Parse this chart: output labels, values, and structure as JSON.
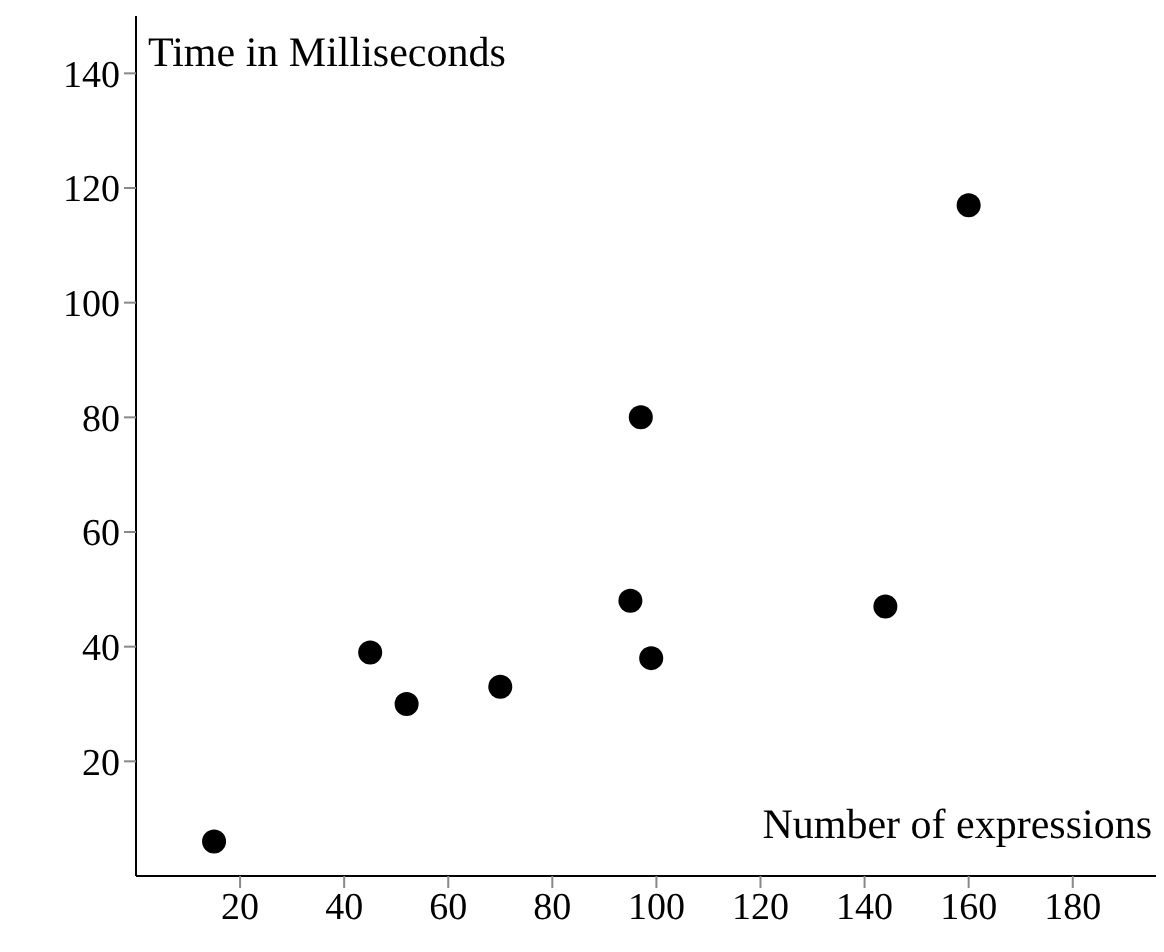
{
  "chart_data": {
    "type": "scatter",
    "xlabel": "Number of expressions",
    "ylabel": "Time in Milliseconds",
    "x": [
      15,
      45,
      52,
      70,
      95,
      97,
      99,
      144,
      160
    ],
    "values": [
      6,
      39,
      30,
      33,
      48,
      80,
      38,
      47,
      117
    ],
    "color": "#000000",
    "marker": "circle",
    "xlim": [
      0,
      196
    ],
    "xticks": [
      20,
      40,
      60,
      80,
      100,
      120,
      140,
      160,
      180
    ],
    "ylim": [
      0,
      150
    ],
    "yticks": [
      20,
      40,
      60,
      80,
      100,
      120,
      140
    ]
  }
}
